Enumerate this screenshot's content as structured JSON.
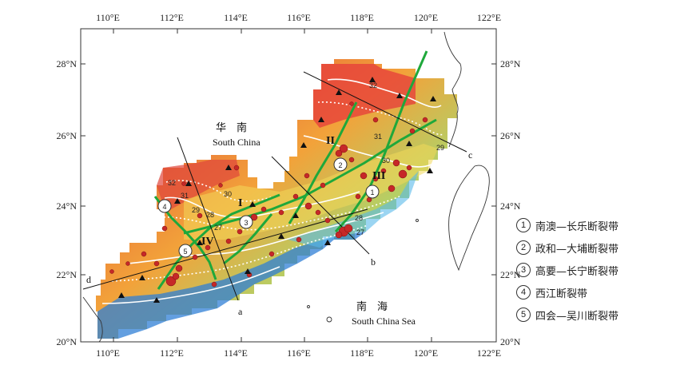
{
  "axes": {
    "lon_ticks": [
      "110°E",
      "112°E",
      "114°E",
      "116°E",
      "118°E",
      "120°E",
      "122°E"
    ],
    "lat_ticks_left": [
      "28°N",
      "26°N",
      "24°N",
      "22°N",
      "20°N"
    ],
    "lat_ticks_right": [
      "28°N",
      "26°N",
      "24°N",
      "22°N",
      "20°N"
    ]
  },
  "labels": {
    "south_china_cn": "华　南",
    "south_china_en": "South China",
    "south_china_sea_cn": "南　海",
    "south_china_sea_en": "South China Sea"
  },
  "zones": [
    "I",
    "II",
    "III",
    "IV"
  ],
  "profiles": [
    "a",
    "b",
    "c",
    "d"
  ],
  "contour_labels": [
    "32",
    "31",
    "30",
    "29",
    "32",
    "31",
    "30",
    "29",
    "28",
    "27",
    "28",
    "27"
  ],
  "fault_numbers": [
    "1",
    "2",
    "3",
    "4",
    "5"
  ],
  "legend": [
    {
      "num": "1",
      "label": "南澳—长乐断裂带"
    },
    {
      "num": "2",
      "label": "政和—大埔断裂带"
    },
    {
      "num": "3",
      "label": "高要—长宁断裂带"
    },
    {
      "num": "4",
      "label": "西江断裂带"
    },
    {
      "num": "5",
      "label": "四会—吴川断裂带"
    }
  ],
  "colors": {
    "high": "#d7263d",
    "mid": "#f5e663",
    "low": "#1f6fd1",
    "fault": "#1fa83b",
    "epicenter": "#c62828"
  }
}
